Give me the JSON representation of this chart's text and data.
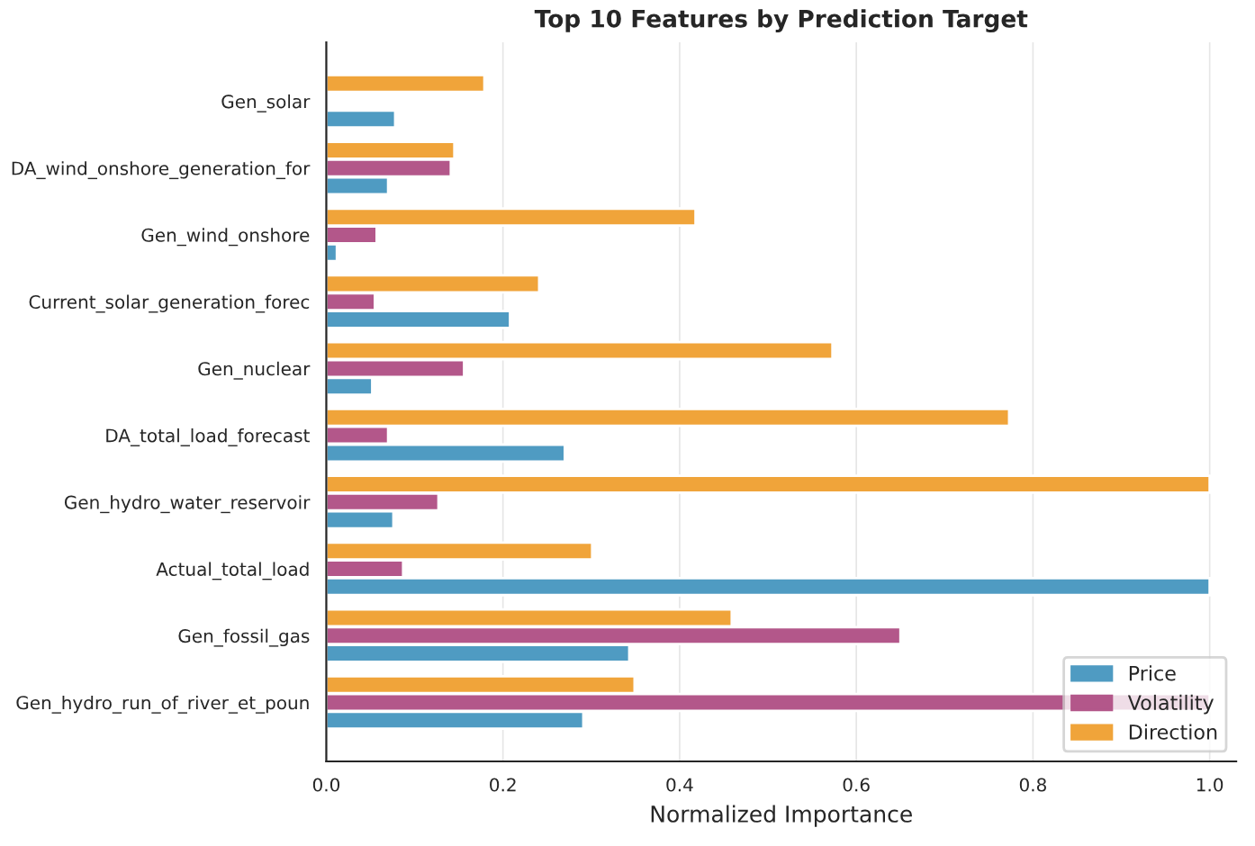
{
  "chart_data": {
    "type": "bar",
    "orientation": "horizontal",
    "title": "Top 10 Features by Prediction Target",
    "xlabel": "Normalized Importance",
    "categories": [
      "Gen_solar",
      "DA_wind_onshore_generation_for",
      "Gen_wind_onshore",
      "Current_solar_generation_forec",
      "Gen_nuclear",
      "DA_total_load_forecast",
      "Gen_hydro_water_reservoir",
      "Actual_total_load",
      "Gen_fossil_gas",
      "Gen_hydro_run_of_river_et_poun"
    ],
    "series": [
      {
        "name": "Price",
        "color": "#4f9bc2",
        "values": [
          0.078,
          0.07,
          0.012,
          0.208,
          0.052,
          0.27,
          0.076,
          1.0,
          0.343,
          0.291
        ]
      },
      {
        "name": "Volatility",
        "color": "#b3578a",
        "values": [
          null,
          0.141,
          0.057,
          0.055,
          0.156,
          0.07,
          0.127,
          0.087,
          0.65,
          1.0
        ]
      },
      {
        "name": "Direction",
        "color": "#f0a43a",
        "values": [
          0.179,
          0.145,
          0.418,
          0.241,
          0.573,
          0.773,
          1.0,
          0.301,
          0.459,
          0.349
        ]
      }
    ],
    "xlim": [
      0,
      1.03
    ],
    "xticks": [
      {
        "value": 0,
        "label": "0.0"
      },
      0.2,
      0.4,
      0.6,
      0.8,
      {
        "value": 1,
        "label": "1.0"
      }
    ],
    "grid": "x",
    "legend": "bottom right"
  }
}
